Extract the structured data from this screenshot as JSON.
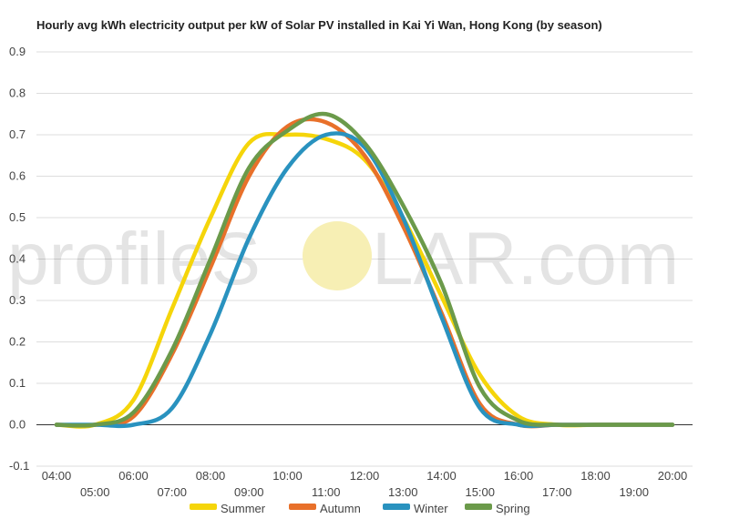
{
  "chart_data": {
    "type": "line",
    "title": "Hourly avg kWh electricity output per kW of Solar PV installed in Kai Yi Wan, Hong Kong (by season)",
    "xlabel": "",
    "ylabel": "",
    "x": [
      "04:00",
      "05:00",
      "06:00",
      "07:00",
      "08:00",
      "09:00",
      "10:00",
      "11:00",
      "12:00",
      "13:00",
      "14:00",
      "15:00",
      "16:00",
      "17:00",
      "18:00",
      "19:00",
      "20:00"
    ],
    "x_tick_labels_upper": [
      "04:00",
      "06:00",
      "08:00",
      "10:00",
      "12:00",
      "14:00",
      "16:00",
      "18:00",
      "20:00"
    ],
    "x_tick_labels_lower": [
      "05:00",
      "07:00",
      "09:00",
      "11:00",
      "13:00",
      "15:00",
      "17:00",
      "19:00"
    ],
    "y_ticks": [
      "-0.1",
      "0.0",
      "0.1",
      "0.2",
      "0.3",
      "0.4",
      "0.5",
      "0.6",
      "0.7",
      "0.8",
      "0.9"
    ],
    "ylim": [
      -0.1,
      0.9
    ],
    "grid": true,
    "legend_position": "bottom",
    "series": [
      {
        "name": "Summer",
        "color": "#f5d50a",
        "values": [
          0.0,
          0.0,
          0.06,
          0.28,
          0.5,
          0.68,
          0.7,
          0.69,
          0.64,
          0.5,
          0.31,
          0.12,
          0.02,
          0.0,
          0.0,
          0.0,
          0.0
        ]
      },
      {
        "name": "Autumn",
        "color": "#e8702a",
        "values": [
          0.0,
          0.0,
          0.02,
          0.17,
          0.38,
          0.6,
          0.72,
          0.73,
          0.65,
          0.48,
          0.27,
          0.05,
          0.0,
          0.0,
          0.0,
          0.0,
          0.0
        ]
      },
      {
        "name": "Winter",
        "color": "#2992bf",
        "values": [
          0.0,
          0.0,
          0.0,
          0.04,
          0.22,
          0.45,
          0.62,
          0.7,
          0.67,
          0.5,
          0.26,
          0.04,
          0.0,
          0.0,
          0.0,
          0.0,
          0.0
        ]
      },
      {
        "name": "Spring",
        "color": "#6b9a4a",
        "values": [
          0.0,
          0.0,
          0.03,
          0.18,
          0.4,
          0.62,
          0.71,
          0.75,
          0.68,
          0.53,
          0.34,
          0.09,
          0.01,
          0.0,
          0.0,
          0.0,
          0.0
        ]
      }
    ]
  },
  "watermark": {
    "text_left": "profileS",
    "text_right": "LAR.com",
    "sun_color": "#f7efb4"
  }
}
